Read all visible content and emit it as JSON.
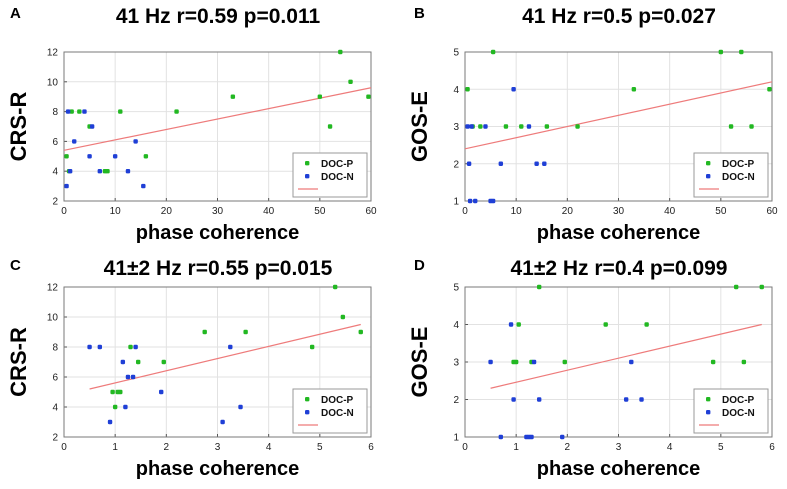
{
  "figure": {
    "colors": {
      "doc_p": "#22b822",
      "doc_n": "#1f3fd6",
      "fit": "#ee7b7b",
      "grid": "#e2e2e2",
      "frame": "#7a7a7a"
    }
  },
  "chart_data": [
    {
      "panel": "A",
      "type": "scatter",
      "title": "41 Hz r=0.59 p=0.011",
      "xlabel": "phase coherence",
      "ylabel": "CRS-R",
      "xlim": [
        0,
        60
      ],
      "ylim": [
        2,
        12
      ],
      "xticks": [
        "0",
        "10",
        "20",
        "30",
        "40",
        "50",
        "60"
      ],
      "yticks": [
        "2",
        "4",
        "6",
        "8",
        "10",
        "12"
      ],
      "legend": {
        "position": "bottom-right",
        "entries": [
          "DOC-P",
          "DOC-N"
        ]
      },
      "fit_line": {
        "x": [
          0,
          60
        ],
        "y": [
          5.4,
          9.6
        ]
      },
      "series": [
        {
          "name": "DOC-P",
          "points": [
            [
              0.5,
              5
            ],
            [
              1,
              4
            ],
            [
              1.5,
              8
            ],
            [
              3,
              8
            ],
            [
              5,
              7
            ],
            [
              8,
              4
            ],
            [
              8.5,
              4
            ],
            [
              11,
              8
            ],
            [
              16,
              5
            ],
            [
              22,
              8
            ],
            [
              33,
              9
            ],
            [
              50,
              9
            ],
            [
              52,
              7
            ],
            [
              54,
              12
            ],
            [
              56,
              10
            ],
            [
              59.5,
              9
            ]
          ]
        },
        {
          "name": "DOC-N",
          "points": [
            [
              0.5,
              3
            ],
            [
              0.8,
              8
            ],
            [
              1.2,
              4
            ],
            [
              2,
              6
            ],
            [
              4,
              8
            ],
            [
              5,
              5
            ],
            [
              5.5,
              7
            ],
            [
              7,
              4
            ],
            [
              10,
              5
            ],
            [
              12.5,
              4
            ],
            [
              14,
              6
            ],
            [
              15.5,
              3
            ]
          ]
        }
      ]
    },
    {
      "panel": "B",
      "type": "scatter",
      "title": "41 Hz r=0.5 p=0.027",
      "xlabel": "phase coherence",
      "ylabel": "GOS-E",
      "xlim": [
        0,
        60
      ],
      "ylim": [
        1,
        5
      ],
      "xticks": [
        "0",
        "10",
        "20",
        "30",
        "40",
        "50",
        "60"
      ],
      "yticks": [
        "1",
        "2",
        "3",
        "4",
        "5"
      ],
      "legend": {
        "position": "bottom-right",
        "entries": [
          "DOC-P",
          "DOC-N"
        ]
      },
      "fit_line": {
        "x": [
          0,
          60
        ],
        "y": [
          2.4,
          4.2
        ]
      },
      "series": [
        {
          "name": "DOC-P",
          "points": [
            [
              0.5,
              4
            ],
            [
              1.5,
              3
            ],
            [
              3,
              3
            ],
            [
              5.5,
              5
            ],
            [
              8,
              3
            ],
            [
              11,
              3
            ],
            [
              16,
              3
            ],
            [
              22,
              3
            ],
            [
              33,
              4
            ],
            [
              50,
              5
            ],
            [
              52,
              3
            ],
            [
              54,
              5
            ],
            [
              56,
              3
            ],
            [
              59.5,
              4
            ]
          ]
        },
        {
          "name": "DOC-N",
          "points": [
            [
              0.5,
              3
            ],
            [
              0.8,
              2
            ],
            [
              1,
              1
            ],
            [
              1.3,
              3
            ],
            [
              2,
              1
            ],
            [
              4,
              3
            ],
            [
              5,
              1
            ],
            [
              5.5,
              1
            ],
            [
              7,
              2
            ],
            [
              9.5,
              4
            ],
            [
              12.5,
              3
            ],
            [
              14,
              2
            ],
            [
              15.5,
              2
            ]
          ]
        }
      ]
    },
    {
      "panel": "C",
      "type": "scatter",
      "title": "41±2 Hz r=0.55 p=0.015",
      "xlabel": "phase coherence",
      "ylabel": "CRS-R",
      "xlim": [
        0,
        6
      ],
      "ylim": [
        2,
        12
      ],
      "xticks": [
        "0",
        "1",
        "2",
        "3",
        "4",
        "5",
        "6"
      ],
      "yticks": [
        "2",
        "4",
        "6",
        "8",
        "10",
        "12"
      ],
      "legend": {
        "position": "bottom-right",
        "entries": [
          "DOC-P",
          "DOC-N"
        ]
      },
      "fit_line": {
        "x": [
          0.5,
          5.8
        ],
        "y": [
          5.2,
          9.5
        ]
      },
      "series": [
        {
          "name": "DOC-P",
          "points": [
            [
              0.95,
              5
            ],
            [
              1.0,
              4
            ],
            [
              1.05,
              5
            ],
            [
              1.1,
              5
            ],
            [
              1.3,
              8
            ],
            [
              1.45,
              7
            ],
            [
              1.95,
              7
            ],
            [
              2.75,
              9
            ],
            [
              3.55,
              9
            ],
            [
              4.85,
              8
            ],
            [
              5.3,
              12
            ],
            [
              5.45,
              10
            ],
            [
              5.8,
              9
            ]
          ]
        },
        {
          "name": "DOC-N",
          "points": [
            [
              0.5,
              8
            ],
            [
              0.7,
              8
            ],
            [
              0.9,
              3
            ],
            [
              1.15,
              7
            ],
            [
              1.2,
              4
            ],
            [
              1.25,
              6
            ],
            [
              1.35,
              6
            ],
            [
              1.4,
              8
            ],
            [
              1.9,
              5
            ],
            [
              3.1,
              3
            ],
            [
              3.25,
              8
            ],
            [
              3.45,
              4
            ]
          ]
        }
      ]
    },
    {
      "panel": "D",
      "type": "scatter",
      "title": "41±2 Hz r=0.4 p=0.099",
      "xlabel": "phase coherence",
      "ylabel": "GOS-E",
      "xlim": [
        0,
        6
      ],
      "ylim": [
        1,
        5
      ],
      "xticks": [
        "0",
        "1",
        "2",
        "3",
        "4",
        "5",
        "6"
      ],
      "yticks": [
        "1",
        "2",
        "3",
        "4",
        "5"
      ],
      "legend": {
        "position": "bottom-right",
        "entries": [
          "DOC-P",
          "DOC-N"
        ]
      },
      "fit_line": {
        "x": [
          0.5,
          5.8
        ],
        "y": [
          2.3,
          4.0
        ]
      },
      "series": [
        {
          "name": "DOC-P",
          "points": [
            [
              0.95,
              3
            ],
            [
              1.0,
              3
            ],
            [
              1.05,
              4
            ],
            [
              1.3,
              3
            ],
            [
              1.45,
              5
            ],
            [
              1.95,
              3
            ],
            [
              2.75,
              4
            ],
            [
              3.55,
              4
            ],
            [
              4.85,
              3
            ],
            [
              5.3,
              5
            ],
            [
              5.45,
              3
            ],
            [
              5.8,
              5
            ]
          ]
        },
        {
          "name": "DOC-N",
          "points": [
            [
              0.5,
              3
            ],
            [
              0.7,
              1
            ],
            [
              0.9,
              4
            ],
            [
              0.95,
              2
            ],
            [
              1.2,
              1
            ],
            [
              1.25,
              1
            ],
            [
              1.3,
              1
            ],
            [
              1.35,
              3
            ],
            [
              1.45,
              2
            ],
            [
              1.9,
              1
            ],
            [
              3.15,
              2
            ],
            [
              3.25,
              3
            ],
            [
              3.45,
              2
            ]
          ]
        }
      ]
    }
  ]
}
